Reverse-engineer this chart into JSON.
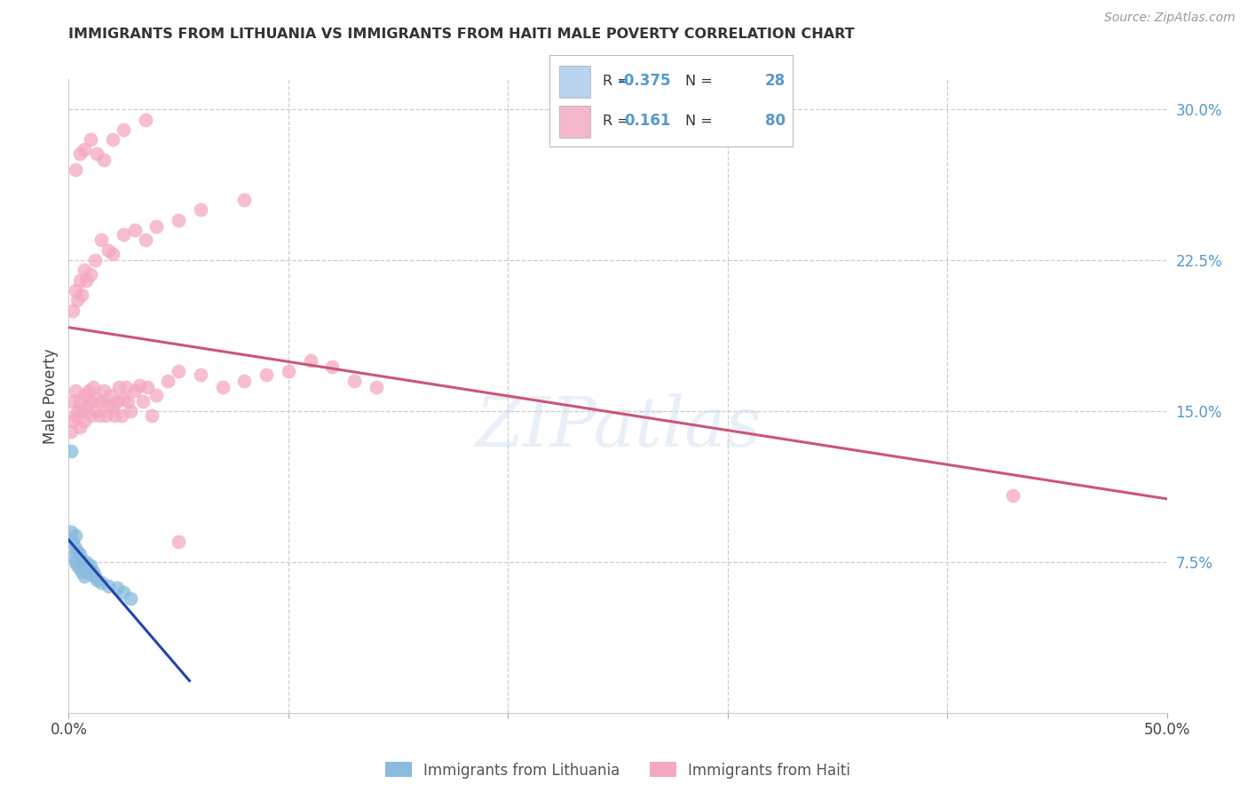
{
  "title": "IMMIGRANTS FROM LITHUANIA VS IMMIGRANTS FROM HAITI MALE POVERTY CORRELATION CHART",
  "source": "Source: ZipAtlas.com",
  "ylabel": "Male Poverty",
  "xlim": [
    0.0,
    0.5
  ],
  "ylim": [
    0.0,
    0.315
  ],
  "ytick_vals": [
    0.075,
    0.15,
    0.225,
    0.3
  ],
  "ytick_labels": [
    "7.5%",
    "15.0%",
    "22.5%",
    "30.0%"
  ],
  "xtick_vals": [
    0.0,
    0.1,
    0.2,
    0.3,
    0.4,
    0.5
  ],
  "xtick_labels": [
    "0.0%",
    "",
    "",
    "",
    "",
    "50.0%"
  ],
  "grid_color": "#cccccc",
  "watermark_text": "ZIPatlas",
  "blue_color": "#88bbdd",
  "pink_color": "#f4a8c0",
  "blue_line_color": "#2244aa",
  "pink_line_color": "#cc5577",
  "legend_blue_box": "#b8d4ee",
  "legend_pink_box": "#f4b8cc",
  "legend_R_blue": "-0.375",
  "legend_N_blue": "28",
  "legend_R_pink": "0.161",
  "legend_N_pink": "80",
  "legend_label_blue": "Immigrants from Lithuania",
  "legend_label_pink": "Immigrants from Haiti",
  "blue_x": [
    0.001,
    0.002,
    0.002,
    0.003,
    0.003,
    0.004,
    0.004,
    0.005,
    0.005,
    0.006,
    0.006,
    0.007,
    0.007,
    0.008,
    0.008,
    0.009,
    0.01,
    0.01,
    0.011,
    0.012,
    0.013,
    0.015,
    0.018,
    0.022,
    0.025,
    0.028,
    0.001,
    0.003
  ],
  "blue_y": [
    0.09,
    0.085,
    0.078,
    0.082,
    0.075,
    0.08,
    0.073,
    0.079,
    0.072,
    0.076,
    0.07,
    0.074,
    0.068,
    0.075,
    0.07,
    0.072,
    0.073,
    0.069,
    0.07,
    0.068,
    0.066,
    0.065,
    0.063,
    0.062,
    0.06,
    0.057,
    0.13,
    0.088
  ],
  "pink_x": [
    0.001,
    0.002,
    0.002,
    0.003,
    0.003,
    0.004,
    0.005,
    0.005,
    0.006,
    0.007,
    0.007,
    0.008,
    0.009,
    0.01,
    0.01,
    0.011,
    0.012,
    0.013,
    0.014,
    0.015,
    0.016,
    0.017,
    0.018,
    0.019,
    0.02,
    0.021,
    0.022,
    0.023,
    0.024,
    0.025,
    0.026,
    0.027,
    0.028,
    0.03,
    0.032,
    0.034,
    0.036,
    0.038,
    0.04,
    0.045,
    0.05,
    0.06,
    0.07,
    0.08,
    0.09,
    0.1,
    0.11,
    0.12,
    0.13,
    0.14,
    0.002,
    0.003,
    0.004,
    0.005,
    0.006,
    0.007,
    0.008,
    0.01,
    0.012,
    0.015,
    0.018,
    0.02,
    0.025,
    0.03,
    0.035,
    0.04,
    0.05,
    0.06,
    0.08,
    0.43,
    0.003,
    0.005,
    0.007,
    0.01,
    0.013,
    0.016,
    0.02,
    0.025,
    0.035,
    0.05
  ],
  "pink_y": [
    0.14,
    0.145,
    0.155,
    0.148,
    0.16,
    0.15,
    0.155,
    0.142,
    0.15,
    0.158,
    0.145,
    0.152,
    0.16,
    0.148,
    0.155,
    0.162,
    0.15,
    0.156,
    0.148,
    0.155,
    0.16,
    0.148,
    0.153,
    0.158,
    0.152,
    0.148,
    0.155,
    0.162,
    0.148,
    0.156,
    0.162,
    0.155,
    0.15,
    0.16,
    0.163,
    0.155,
    0.162,
    0.148,
    0.158,
    0.165,
    0.17,
    0.168,
    0.162,
    0.165,
    0.168,
    0.17,
    0.175,
    0.172,
    0.165,
    0.162,
    0.2,
    0.21,
    0.205,
    0.215,
    0.208,
    0.22,
    0.215,
    0.218,
    0.225,
    0.235,
    0.23,
    0.228,
    0.238,
    0.24,
    0.235,
    0.242,
    0.245,
    0.25,
    0.255,
    0.108,
    0.27,
    0.278,
    0.28,
    0.285,
    0.278,
    0.275,
    0.285,
    0.29,
    0.295,
    0.085
  ]
}
